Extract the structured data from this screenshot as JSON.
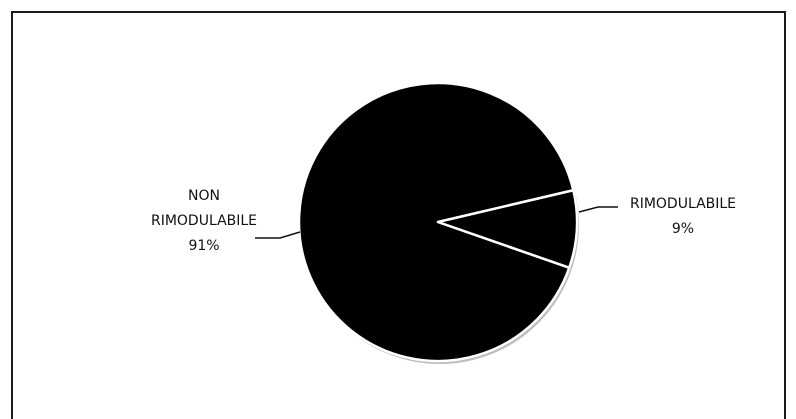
{
  "chart_data": {
    "type": "pie",
    "title": "",
    "slices": [
      {
        "name_lines": [
          "NON",
          "RIMODULABILE"
        ],
        "percent_label": "91%",
        "value": 91
      },
      {
        "name_lines": [
          "RIMODULABILE"
        ],
        "percent_label": "9%",
        "value": 9
      }
    ],
    "legend": "none",
    "colors": {
      "fill": "#000000",
      "separator": "#ffffff",
      "frame": "#1a1a1a",
      "leader": "#111111"
    }
  }
}
